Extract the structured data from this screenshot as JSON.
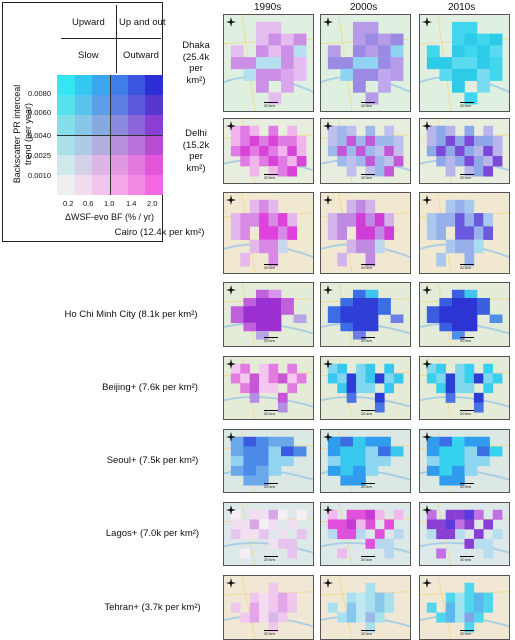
{
  "legend": {
    "quadrants": {
      "upward": "Upward",
      "up_and_out": "Up and out",
      "slow": "Slow",
      "outward": "Outward"
    },
    "y_axis_label": "Backscatter PR interceal trend (per year)",
    "y_ticks": [
      "0.0080",
      "0.0060",
      "0.0040",
      "0.0025",
      "0.0010"
    ],
    "x_axis_label": "ΔWSF-evo BF (% / yr)",
    "x_ticks": [
      "0.2",
      "0.6",
      "1.0",
      "1.4",
      "2.0"
    ],
    "colors": [
      [
        "#33e6f0",
        "#33c8f0",
        "#3da4ee",
        "#3f7ee8",
        "#3b55e0",
        "#2b2fd4"
      ],
      [
        "#55e2ec",
        "#5ac4ec",
        "#5c9fe8",
        "#5c7ee4",
        "#5a58dc",
        "#5638d0"
      ],
      [
        "#86dfe8",
        "#86c6e8",
        "#88a8e2",
        "#8c8ade",
        "#8a66da",
        "#8a3fd4"
      ],
      [
        "#aadfe8",
        "#aecbe6",
        "#b2aedf",
        "#b690dc",
        "#b872da",
        "#b64ed4"
      ],
      [
        "#cfe8ec",
        "#d4d0e8",
        "#dcb6e4",
        "#e098e0",
        "#e27ade",
        "#e256da"
      ],
      [
        "#eef0f0",
        "#f0dcee",
        "#f2c4ee",
        "#f4a8ea",
        "#f48ae6",
        "#f268e2"
      ]
    ]
  },
  "decades": [
    "1990s",
    "2000s",
    "2010s"
  ],
  "scale_label": "20 km",
  "cities": [
    {
      "label": "Dhaka (25.4k per km²)",
      "lines": [
        "Dhaka",
        "(25.4k",
        "per",
        "km²)"
      ],
      "base": "#dff0e0",
      "maps": [
        {
          "pattern": "dhaka",
          "palette": [
            "#e4bcf0",
            "#cc8fe6",
            "#b6dff0",
            "#d9a6ee"
          ]
        },
        {
          "pattern": "dhaka",
          "palette": [
            "#b59be8",
            "#9b8ae4",
            "#8fd3f0",
            "#c0a8f0"
          ]
        },
        {
          "pattern": "dhaka",
          "palette": [
            "#3fd6ee",
            "#2ecbe9",
            "#5ad9f0",
            "#78dbef"
          ]
        }
      ]
    },
    {
      "label": "Delhi (15.2k per km²)",
      "lines": [
        "Delhi",
        "(15.2k",
        "per",
        "km²)"
      ],
      "base": "#e8eedd",
      "maps": [
        {
          "pattern": "delhi",
          "palette": [
            "#f0b6ec",
            "#e07ae4",
            "#d843d8",
            "#f4d0f0"
          ]
        },
        {
          "pattern": "delhi",
          "palette": [
            "#c0c0ee",
            "#9fb8ec",
            "#c457d8",
            "#b8e0ee"
          ]
        },
        {
          "pattern": "delhi",
          "palette": [
            "#b8b4ec",
            "#8ca8e8",
            "#7c48d8",
            "#b6e4ee"
          ]
        }
      ]
    },
    {
      "label": "Cairo (12.4k per km²)",
      "lines": [
        "Cairo (12.4k per km²)"
      ],
      "base": "#f0e8d0",
      "maps": [
        {
          "pattern": "cairo",
          "palette": [
            "#e4b8ec",
            "#d68ae4",
            "#e040dc",
            "#c8d8ee"
          ]
        },
        {
          "pattern": "cairo",
          "palette": [
            "#d2b4ea",
            "#c08ae2",
            "#d03cd6",
            "#bcd8ee"
          ]
        },
        {
          "pattern": "cairo",
          "palette": [
            "#aac8ee",
            "#98b0ea",
            "#6a58de",
            "#a8dcef"
          ]
        }
      ]
    },
    {
      "label": "Ho Chi Minh City (8.1k per km²)",
      "lines": [
        "Ho Chi Minh City (8.1k per km²)"
      ],
      "base": "#e2ecd8",
      "maps": [
        {
          "pattern": "hcmc",
          "palette": [
            "#c060dc",
            "#9a2fd2",
            "#d894e8",
            "#b8a4e8"
          ]
        },
        {
          "pattern": "hcmc",
          "palette": [
            "#3b6ee4",
            "#2e3ed6",
            "#40c2ee",
            "#6e7ce6"
          ]
        },
        {
          "pattern": "hcmc",
          "palette": [
            "#3a5ee0",
            "#2c34d4",
            "#40c6ee",
            "#4f8ee8"
          ]
        }
      ]
    },
    {
      "label": "Beijing+ (7.6k per km²)",
      "lines": [
        "Beijing+ (7.6k per km²)"
      ],
      "base": "#e4ecd8",
      "maps": [
        {
          "pattern": "beijing",
          "palette": [
            "#e37ce0",
            "#c854d8",
            "#f4c8ee",
            "#b48ee6"
          ]
        },
        {
          "pattern": "beijing",
          "palette": [
            "#36c8ee",
            "#2b3ed6",
            "#7fd8f0",
            "#4a74e4"
          ]
        },
        {
          "pattern": "beijing",
          "palette": [
            "#38d0ee",
            "#2b3ed6",
            "#7fd8f0",
            "#4a74e4"
          ]
        }
      ]
    },
    {
      "label": "Seoul+ (7.5k per km²)",
      "lines": [
        "Seoul+ (7.5k per km²)"
      ],
      "base": "#dce8e4",
      "maps": [
        {
          "pattern": "seoul",
          "palette": [
            "#4c8ae8",
            "#3a5ae0",
            "#92d4f0",
            "#6aa8ea"
          ]
        },
        {
          "pattern": "seoul",
          "palette": [
            "#38c8ee",
            "#3b6ee4",
            "#8fd6f0",
            "#2f9ced"
          ]
        },
        {
          "pattern": "seoul",
          "palette": [
            "#36d2ee",
            "#3b70e4",
            "#8fd6f0",
            "#2f9ced"
          ]
        }
      ]
    },
    {
      "label": "Lagos+ (7.0k per km²)",
      "lines": [
        "Lagos+ (7.0k per km²)"
      ],
      "base": "#dde8e8",
      "maps": [
        {
          "pattern": "lagos",
          "palette": [
            "#f0e0f0",
            "#d8a8e6",
            "#e6c4ee",
            "#f6f0f4"
          ]
        },
        {
          "pattern": "lagos",
          "palette": [
            "#e050dc",
            "#c43ad4",
            "#b8d8f0",
            "#f0b8ec"
          ]
        },
        {
          "pattern": "lagos",
          "palette": [
            "#8a3fd4",
            "#5a3ad8",
            "#b8dcf0",
            "#c070e0"
          ]
        }
      ]
    },
    {
      "label": "Tehran+ (3.7k per km²)",
      "lines": [
        "Tehran+ (3.7k per km²)"
      ],
      "base": "#f0e8d4",
      "maps": [
        {
          "pattern": "tehran",
          "palette": [
            "#f0c8ee",
            "#e4a6e8",
            "#f4dcf0",
            "#d8b8ea"
          ]
        },
        {
          "pattern": "tehran",
          "palette": [
            "#a8e0ee",
            "#88c8ec",
            "#c0e8f0",
            "#9cb8ea"
          ]
        },
        {
          "pattern": "tehran",
          "palette": [
            "#52d6ee",
            "#5ab8ec",
            "#a0e4f0",
            "#7ea6e8"
          ]
        }
      ]
    }
  ]
}
